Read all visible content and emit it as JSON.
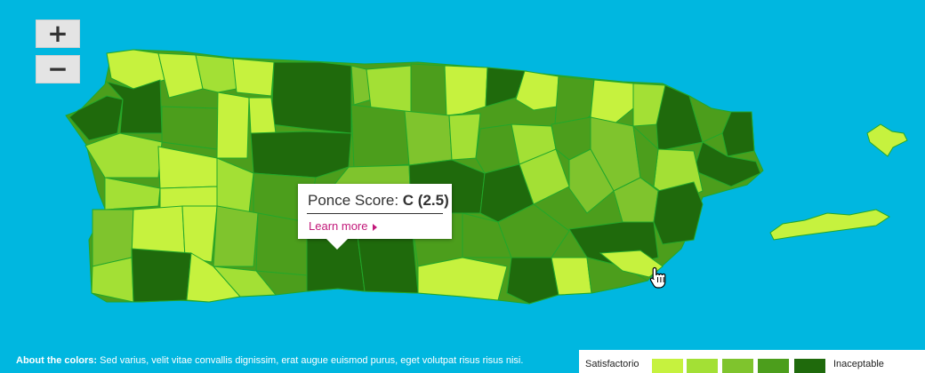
{
  "controls": {
    "zoom_in_icon": "plus-icon",
    "zoom_out_icon": "minus-icon"
  },
  "tooltip": {
    "label": "Ponce Score:",
    "grade": "C (2.5)",
    "link": "Learn more"
  },
  "footer": {
    "about_title": "About the colors:",
    "about_text": "Sed varius, velit vitae convallis dignissim, erat augue euismod purus, eget volutpat risus risus nisi."
  },
  "legend": {
    "low_label": "Satisfactorio",
    "high_label": "Inaceptable",
    "colors": [
      "#c6f23e",
      "#a3e035",
      "#7fc42d",
      "#4c9e1c",
      "#1f6a0c"
    ]
  },
  "colors": {
    "water": "#00b7e0",
    "border": "#22a72a",
    "link": "#c2187a"
  }
}
